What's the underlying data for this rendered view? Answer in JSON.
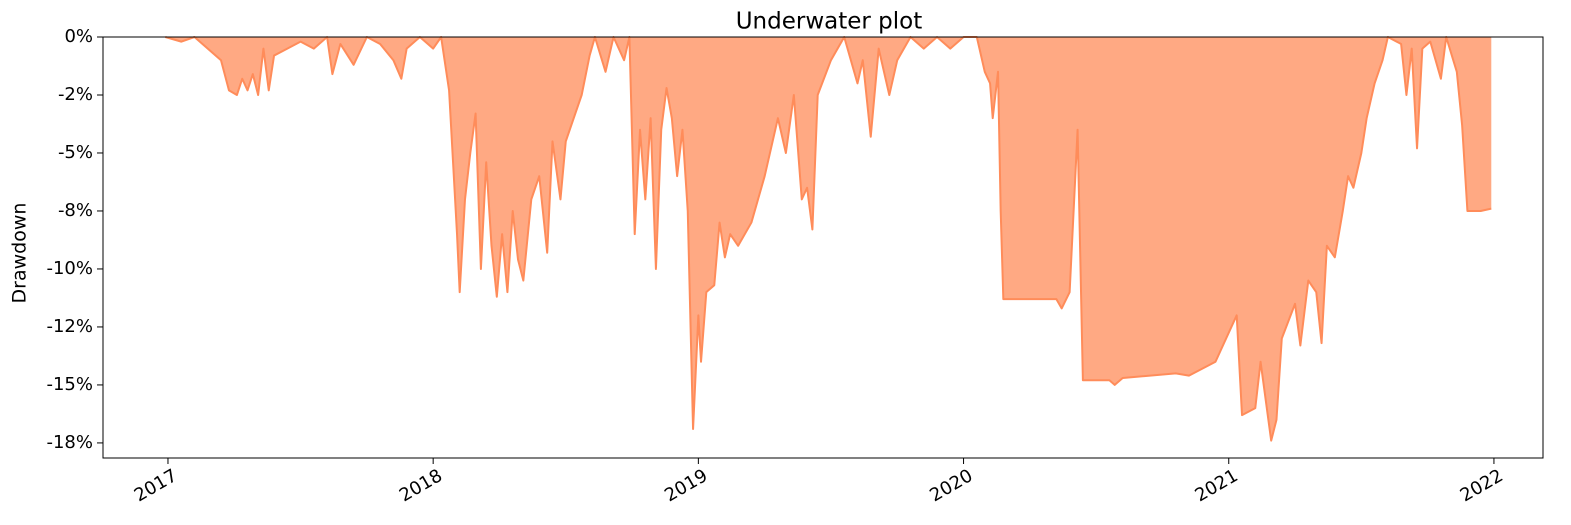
{
  "chart_data": {
    "type": "area",
    "title": "Underwater plot",
    "y_label": "Drawdown",
    "color": "#ff8c5a",
    "grid": false,
    "xlim": [
      2016.755,
      2022.185
    ],
    "xticks": [
      2017,
      2018,
      2019,
      2020,
      2021,
      2022
    ],
    "ylim": [
      -18.15,
      0
    ],
    "yticks": [
      {
        "value": 0,
        "label": "0%"
      },
      {
        "value": -2.5,
        "label": "-2%"
      },
      {
        "value": -5,
        "label": "-5%"
      },
      {
        "value": -7.5,
        "label": "-8%"
      },
      {
        "value": -10,
        "label": "-10%"
      },
      {
        "value": -12.5,
        "label": "-12%"
      },
      {
        "value": -15,
        "label": "-15%"
      },
      {
        "value": -17.5,
        "label": "-18%"
      }
    ],
    "x": [
      2016.99,
      2017.05,
      2017.1,
      2017.15,
      2017.2,
      2017.23,
      2017.26,
      2017.28,
      2017.3,
      2017.32,
      2017.34,
      2017.36,
      2017.38,
      2017.4,
      2017.45,
      2017.5,
      2017.55,
      2017.6,
      2017.62,
      2017.65,
      2017.7,
      2017.75,
      2017.8,
      2017.85,
      2017.88,
      2017.9,
      2017.95,
      2018.0,
      2018.03,
      2018.06,
      2018.09,
      2018.1,
      2018.12,
      2018.14,
      2018.16,
      2018.18,
      2018.2,
      2018.22,
      2018.24,
      2018.26,
      2018.28,
      2018.3,
      2018.32,
      2018.34,
      2018.37,
      2018.4,
      2018.43,
      2018.45,
      2018.48,
      2018.5,
      2018.53,
      2018.56,
      2018.59,
      2018.61,
      2018.65,
      2018.68,
      2018.72,
      2018.74,
      2018.76,
      2018.78,
      2018.8,
      2018.82,
      2018.84,
      2018.86,
      2018.88,
      2018.9,
      2018.92,
      2018.94,
      2018.96,
      2018.98,
      2019.0,
      2019.01,
      2019.03,
      2019.06,
      2019.08,
      2019.1,
      2019.12,
      2019.15,
      2019.2,
      2019.25,
      2019.28,
      2019.3,
      2019.33,
      2019.36,
      2019.39,
      2019.41,
      2019.43,
      2019.45,
      2019.5,
      2019.55,
      2019.6,
      2019.62,
      2019.65,
      2019.68,
      2019.72,
      2019.75,
      2019.8,
      2019.85,
      2019.9,
      2019.95,
      2020.0,
      2020.05,
      2020.08,
      2020.1,
      2020.11,
      2020.13,
      2020.14,
      2020.15,
      2020.35,
      2020.37,
      2020.4,
      2020.43,
      2020.45,
      2020.55,
      2020.57,
      2020.6,
      2020.8,
      2020.85,
      2020.95,
      2021.03,
      2021.05,
      2021.1,
      2021.12,
      2021.16,
      2021.18,
      2021.2,
      2021.25,
      2021.27,
      2021.3,
      2021.33,
      2021.35,
      2021.37,
      2021.4,
      2021.43,
      2021.45,
      2021.47,
      2021.5,
      2021.52,
      2021.55,
      2021.58,
      2021.6,
      2021.65,
      2021.67,
      2021.69,
      2021.71,
      2021.73,
      2021.76,
      2021.8,
      2021.82,
      2021.86,
      2021.88,
      2021.9,
      2021.95,
      2021.99
    ],
    "values": [
      0,
      -0.2,
      0,
      -0.5,
      -1.0,
      -2.3,
      -2.5,
      -1.8,
      -2.3,
      -1.6,
      -2.5,
      -0.5,
      -2.3,
      -0.8,
      -0.5,
      -0.2,
      -0.5,
      0,
      -1.6,
      -0.3,
      -1.2,
      0,
      -0.3,
      -1.0,
      -1.8,
      -0.5,
      0,
      -0.5,
      0,
      -2.3,
      -8.5,
      -11,
      -7,
      -5,
      -3.3,
      -10,
      -5.4,
      -9,
      -11.2,
      -8.5,
      -11,
      -7.5,
      -9.6,
      -10.5,
      -7,
      -6,
      -9.3,
      -4.5,
      -7,
      -4.5,
      -3.5,
      -2.5,
      -0.8,
      0,
      -1.5,
      0,
      -1,
      0,
      -8.5,
      -4,
      -7,
      -3.5,
      -10,
      -4,
      -2.2,
      -3.5,
      -6,
      -4,
      -7.5,
      -16.9,
      -12,
      -14,
      -11,
      -10.7,
      -8,
      -9.5,
      -8.5,
      -9,
      -8,
      -6,
      -4.5,
      -3.5,
      -5,
      -2.5,
      -7,
      -6.5,
      -8.3,
      -2.5,
      -1,
      0,
      -2,
      -1,
      -4.3,
      -0.5,
      -2.5,
      -1,
      0,
      -0.5,
      0,
      -0.5,
      0,
      0,
      -1.5,
      -2,
      -3.5,
      -1.5,
      -7.5,
      -11.3,
      -11.3,
      -11.7,
      -11,
      -4,
      -14.8,
      -14.8,
      -15,
      -14.7,
      -14.5,
      -14.6,
      -14,
      -12,
      -16.3,
      -16,
      -14,
      -17.4,
      -16.5,
      -13,
      -11.5,
      -13.3,
      -10.5,
      -11,
      -13.2,
      -9,
      -9.5,
      -7.5,
      -6,
      -6.5,
      -5,
      -3.5,
      -2,
      -1,
      0,
      -0.3,
      -2.5,
      -0.5,
      -4.8,
      -0.5,
      -0.2,
      -1.8,
      0,
      -1.5,
      -3.8,
      -7.5,
      -7.5,
      -7.4
    ]
  }
}
